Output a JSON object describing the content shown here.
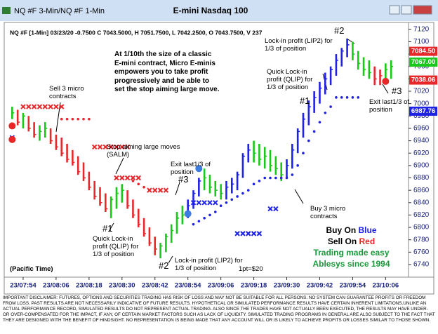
{
  "window_title": "NQ #F 3-Min/NQ #F 1-Min",
  "chart_data": {
    "type": "ohlc",
    "title": "E-mini Nasdaq 100",
    "info": "NQ #F [1-Min] 03/23/20  -0.7500  C 7043.5000,  H 7051.7500,  L 7042.2500,  O 7043.7500,  V 237",
    "xlim": [
      -1,
      70
    ],
    "ylim": [
      6735,
      7125
    ],
    "xticks": [
      {
        "value": 2,
        "label": "23/07:54"
      },
      {
        "value": 8,
        "label": "23/08:06"
      },
      {
        "value": 14,
        "label": "23/08:18"
      },
      {
        "value": 20,
        "label": "23/08:30"
      },
      {
        "value": 26,
        "label": "23/08:42"
      },
      {
        "value": 32,
        "label": "23/08:54"
      },
      {
        "value": 38,
        "label": "23/09:06"
      },
      {
        "value": 44,
        "label": "23/09:18"
      },
      {
        "value": 50,
        "label": "23/09:30"
      },
      {
        "value": 56,
        "label": "23/09:42"
      },
      {
        "value": 62,
        "label": "23/09:54"
      },
      {
        "value": 68,
        "label": "23/10:06"
      }
    ],
    "yticks": [
      6740,
      6760,
      6780,
      6800,
      6820,
      6840,
      6860,
      6880,
      6900,
      6920,
      6940,
      6960,
      6980,
      7000,
      7020,
      7040,
      7060,
      7080,
      7100,
      7120
    ],
    "highs": [
      6995,
      6990,
      6985,
      6980,
      6970,
      6965,
      6970,
      6960,
      6950,
      6945,
      6935,
      6925,
      6915,
      6905,
      6890,
      6875,
      6865,
      6855,
      6850,
      6865,
      6870,
      6860,
      6845,
      6830,
      6815,
      6800,
      6785,
      6775,
      6790,
      6805,
      6825,
      6835,
      6845,
      6860,
      6880,
      6895,
      6885,
      6875,
      6870,
      6875,
      6880,
      6890,
      6920,
      6935,
      6940,
      6935,
      6930,
      6925,
      6915,
      6905,
      6910,
      6935,
      6960,
      6985,
      7005,
      7020,
      7035,
      7050,
      7060,
      7080,
      7090,
      7105,
      7100,
      7085,
      7075,
      7070,
      7060,
      7055,
      7065,
      7070
    ],
    "lows": [
      6975,
      6965,
      6960,
      6955,
      6945,
      6940,
      6945,
      6935,
      6925,
      6915,
      6905,
      6900,
      6885,
      6875,
      6860,
      6845,
      6835,
      6825,
      6815,
      6830,
      6840,
      6830,
      6815,
      6800,
      6785,
      6770,
      6755,
      6750,
      6760,
      6775,
      6790,
      6805,
      6815,
      6830,
      6850,
      6860,
      6855,
      6850,
      6845,
      6845,
      6855,
      6860,
      6880,
      6905,
      6905,
      6900,
      6895,
      6890,
      6885,
      6875,
      6880,
      6895,
      6920,
      6945,
      6965,
      6985,
      7000,
      7015,
      7030,
      7045,
      7060,
      7075,
      7070,
      7055,
      7045,
      7040,
      7030,
      7030,
      7035,
      7040
    ],
    "closes": [
      6985,
      6970,
      6980,
      6960,
      6950,
      6955,
      6960,
      6940,
      6930,
      6920,
      6910,
      6905,
      6890,
      6880,
      6865,
      6850,
      6840,
      6830,
      6845,
      6855,
      6860,
      6835,
      6820,
      6805,
      6790,
      6775,
      6765,
      6770,
      6785,
      6795,
      6815,
      6820,
      6835,
      6855,
      6875,
      6880,
      6865,
      6860,
      6855,
      6865,
      6870,
      6885,
      6915,
      6925,
      6920,
      6910,
      6915,
      6900,
      6895,
      6885,
      6900,
      6925,
      6955,
      6975,
      6995,
      7010,
      7025,
      7040,
      7055,
      7070,
      7085,
      7095,
      7080,
      7065,
      7055,
      7050,
      7040,
      7045,
      7055,
      7060
    ],
    "colors": [
      "#19c819",
      "#e82828",
      "#19c819",
      "#e82828",
      "#e82828",
      "#19c819",
      "#19c819",
      "#e82828",
      "#e82828",
      "#e82828",
      "#e82828",
      "#e82828",
      "#e82828",
      "#e82828",
      "#e82828",
      "#e82828",
      "#e82828",
      "#e82828",
      "#19c819",
      "#19c819",
      "#19c819",
      "#e82828",
      "#e82828",
      "#e82828",
      "#e82828",
      "#e82828",
      "#e82828",
      "#19c819",
      "#19c819",
      "#19c819",
      "#19c819",
      "#19c819",
      "#1e22e6",
      "#1e22e6",
      "#1e22e6",
      "#19c819",
      "#19c819",
      "#19c819",
      "#19c819",
      "#1e22e6",
      "#1e22e6",
      "#1e22e6",
      "#1e22e6",
      "#1e22e6",
      "#19c819",
      "#19c819",
      "#19c819",
      "#19c819",
      "#19c819",
      "#19c819",
      "#1e22e6",
      "#1e22e6",
      "#1e22e6",
      "#1e22e6",
      "#1e22e6",
      "#1e22e6",
      "#1e22e6",
      "#1e22e6",
      "#1e22e6",
      "#1e22e6",
      "#1e22e6",
      "#1e22e6",
      "#19c819",
      "#19c819",
      "#19c819",
      "#19c819",
      "#e82828",
      "#e82828",
      "#19c819",
      "#19c819"
    ],
    "markers": [
      {
        "symbol": "x",
        "color": "#e82828",
        "x": [
          2,
          3,
          4,
          5,
          6,
          7,
          8,
          9
        ],
        "values": [
          6995,
          6995,
          6995,
          6995,
          6995,
          6995,
          6995,
          6995
        ]
      },
      {
        "symbol": "dot",
        "color": "#e82828",
        "x": [
          9,
          10,
          11,
          12,
          13,
          14
        ],
        "values": [
          6975,
          6975,
          6975,
          6975,
          6975,
          6975
        ]
      },
      {
        "symbol": "x",
        "color": "#e82828",
        "x": [
          15,
          16,
          17,
          18,
          19,
          20,
          21
        ],
        "values": [
          6930,
          6930,
          6930,
          6930,
          6930,
          6930,
          6930
        ]
      },
      {
        "symbol": "x",
        "color": "#e82828",
        "x": [
          19,
          20,
          21,
          22,
          23
        ],
        "values": [
          6880,
          6880,
          6880,
          6880,
          6880
        ]
      },
      {
        "symbol": "dot",
        "color": "#e82828",
        "x": [
          22,
          23,
          24,
          25,
          26,
          27
        ],
        "values": [
          6875,
          6870,
          6865,
          6860,
          6860,
          6860
        ]
      },
      {
        "symbol": "x",
        "color": "#e82828",
        "x": [
          25,
          26,
          27,
          28
        ],
        "values": [
          6860,
          6860,
          6860,
          6860
        ]
      },
      {
        "symbol": "x",
        "color": "#1e22e6",
        "x": [
          0,
          33,
          34,
          35,
          36,
          37,
          47,
          48
        ],
        "values": [
          6945,
          6840,
          6840,
          6840,
          6840,
          6840,
          6830,
          6830
        ]
      },
      {
        "symbol": "x",
        "color": "#1e22e6",
        "x": [
          41,
          42,
          43,
          44,
          45
        ],
        "values": [
          6790,
          6790,
          6790,
          6790,
          6790
        ]
      },
      {
        "symbol": "dot",
        "color": "#1e22e6",
        "x": [
          33,
          34,
          35,
          36,
          37,
          38,
          39,
          40,
          41,
          42,
          43,
          44,
          45,
          46,
          47,
          48,
          49,
          50,
          51,
          52,
          53,
          54,
          55,
          56,
          57,
          58,
          59,
          60,
          61,
          62,
          63
        ],
        "values": [
          6805,
          6810,
          6815,
          6820,
          6825,
          6835,
          6840,
          6845,
          6850,
          6855,
          6860,
          6870,
          6875,
          6880,
          6880,
          6880,
          6880,
          6880,
          6885,
          6900,
          6920,
          6940,
          6955,
          6970,
          6985,
          6995,
          7010,
          7010,
          7010,
          7010,
          7010
        ]
      },
      {
        "symbol": "big",
        "color": "#e82828",
        "x": [
          0,
          0,
          68
        ],
        "values": [
          6964,
          6942,
          7036
        ]
      },
      {
        "symbol": "big",
        "color": "#3b7de0",
        "x": [
          32,
          34
        ],
        "values": [
          6822,
          6895
        ]
      }
    ],
    "price_labels": [
      {
        "value": 7084.5,
        "label": "7084.50",
        "color": "#e82828"
      },
      {
        "value": 7067,
        "label": "7067.00",
        "color": "#19c819"
      },
      {
        "value": 7038.06,
        "label": "7038.06",
        "color": "#e82828"
      },
      {
        "value": 6987.76,
        "label": "6987.76",
        "color": "#1e22e6"
      }
    ]
  },
  "annotations": [
    "At 1/10th the size of a classic\nE-mini contract, Micro E-minis\nempowers you to take profit\nprogressively and be able to\nset the stop aiming large move.",
    "Sell 3 micro\ncontracts",
    "Stop aiming large moves\n(SALM)",
    "Exit last1/3 of\nposition",
    "#3",
    "#1",
    "Quick Lock-in\nprofit (QLIP) for\n1/3 of position",
    "#2",
    "Lock-in profit (LIP2) for\n1/3 of position",
    "(Pacific Time)",
    "1pt=$20",
    "Buy 3 micro\ncontracts",
    "#2",
    "Lock-in profit (LIP2) for\n1/3 of position",
    "Quick Lock-in\nprofit (QLIP) for\n1/3 of position",
    "#1",
    "#3",
    "Exit last1/3 of\nposition"
  ],
  "legend": {
    "buy": "Buy On",
    "buy_word": "Blue",
    "sell": "Sell On",
    "sell_word": "Red",
    "tagline": "Trading made easy",
    "brand": "Ablesys since 1994"
  },
  "disclaimer": "IMPORTANT DISCLAIMER: FUTURES, OPTIONS AND SECURITIES TRADING HAS RISK OF LOSS AND MAY NOT BE SUITABLE FOR ALL PERSONS. NO SYSTEM CAN GUARANTEE PROFITS OR FREEDOM FROM LOSS. PAST RESULTS ARE NOT NECESSARILY INDICATIVE OF FUTURE RESULTS. HYPOTHETICAL OR SIMULATED PERFORMANCE RESULTS HAVE CERTAIN INHERENT LIMITATIONS.UNLIKE AN ACTUAL PERFORMANCE RECORD, SIMULATED RESULTS DO NOT REPRESENT ACTUAL TRADING. ALSO SINCE THE TRADES HAVE NOT ACTUALLY BEEN EXECUTED, THE RESULTS MAY HAVE UNDER- OR OVER-COMPENSATED FOR THE IMPACT, IF ANY, OF CERTAIN MARKET FACTORS SUCH AS LACK OF LIQUIDITY. SIMULATED TRADING PROGRAMS IN GENERAL ARE ALSO SUBJECT TO THE FACT THAT THEY ARE DESIGNED WITH THE BENEFIT OF HINDSIGHT. NO REPRESENTATION IS BEING MADE THAT ANY ACCOUNT WILL OR IS LIKELY TO ACHIEVE PROFITS OR LOSSES SIMILAR TO THOSE SHOWN."
}
